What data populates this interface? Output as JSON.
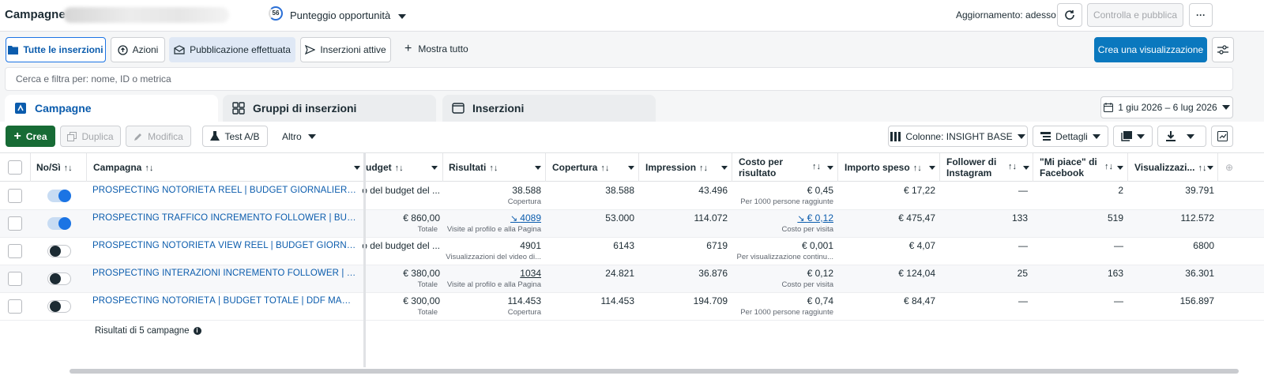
{
  "header": {
    "title": "Campagne",
    "score": "56",
    "opportunity_label": "Punteggio opportunità",
    "update_status": "Aggiornamento: adesso",
    "review_publish": "Controlla e pubblica",
    "more": "···"
  },
  "toolbar": {
    "all_ads": "Tutte le inserzioni",
    "actions": "Azioni",
    "published": "Pubblicazione effettuata",
    "active_ads": "Inserzioni attive",
    "show_all": "Mostra tutto",
    "create_view": "Crea una visualizzazione"
  },
  "search": {
    "placeholder": "Cerca e filtra per: nome, ID o metrica"
  },
  "tabs": [
    "Campagne",
    "Gruppi di inserzioni",
    "Inserzioni"
  ],
  "date_range": "1 giu 2026 – 6 lug 2026",
  "actions_bar": {
    "create": "Crea",
    "duplicate": "Duplica",
    "edit": "Modifica",
    "ab_test": "Test A/B",
    "more": "Altro",
    "columns": "Colonne: INSIGHT BASE",
    "details": "Dettagli"
  },
  "columns": {
    "onoff": "No/Sì",
    "campaign": "Campagna",
    "budget": "udget",
    "results": "Risultati",
    "reach": "Copertura",
    "impressions": "Impression",
    "cpr1": "Costo per",
    "cpr2": "risultato",
    "spent": "Importo speso",
    "ig1": "Follower di",
    "ig2": "Instagram",
    "fb1": "\"Mi piace\" di",
    "fb2": "Facebook",
    "views": "Visualizzazi..."
  },
  "rows": [
    {
      "on": true,
      "name": "PROSPECTING NOTORIETÀ REEL | BUDGET GIORNALIERO | DDF MANAGEMENT",
      "budget": "o del budget del ...",
      "budget_sub": "",
      "results": "38.588",
      "results_sub": "Copertura",
      "results_link": false,
      "reach": "38.588",
      "impressions": "43.496",
      "cpr": "€ 0,45",
      "cpr_sub": "Per 1000 persone raggiunte",
      "cpr_link": false,
      "spent": "€ 17,22",
      "ig": "—",
      "fb": "2",
      "views": "39.791"
    },
    {
      "on": true,
      "name": "PROSPECTING TRAFFICO INCREMENTO FOLLOWER | BUDGET TOTALE",
      "budget": "€ 860,00",
      "budget_sub": "Totale",
      "results": "4089",
      "results_sub": "Visite al profilo e alla Pagina",
      "results_link": true,
      "reach": "53.000",
      "impressions": "114.072",
      "cpr": "€ 0,12",
      "cpr_sub": "Costo per visita",
      "cpr_link": true,
      "spent": "€ 475,47",
      "ig": "133",
      "fb": "519",
      "views": "112.572"
    },
    {
      "on": false,
      "name": "PROSPECTING NOTORIETÀ VIEW REEL | BUDGET GIORNALIERO | DDF",
      "budget": "o del budget del ...",
      "budget_sub": "",
      "results": "4901",
      "results_sub": "Visualizzazioni del video di...",
      "results_link": false,
      "reach": "6143",
      "impressions": "6719",
      "cpr": "€ 0,001",
      "cpr_sub": "Per visualizzazione continu...",
      "cpr_link": false,
      "spent": "€ 4,07",
      "ig": "—",
      "fb": "—",
      "views": "6800"
    },
    {
      "on": false,
      "name": "PROSPECTING INTERAZIONI INCREMENTO FOLLOWER | BUDGET TOTALE",
      "budget": "€ 380,00",
      "budget_sub": "Totale",
      "results": "1034",
      "results_sub": "Visite al profilo e alla Pagina",
      "results_link": false,
      "reach": "24.821",
      "impressions": "36.876",
      "cpr": "€ 0,12",
      "cpr_sub": "Costo per visita",
      "cpr_link": false,
      "spent": "€ 124,04",
      "ig": "25",
      "fb": "163",
      "views": "36.301"
    },
    {
      "on": false,
      "name": "PROSPECTING NOTORIETÀ | BUDGET TOTALE | DDF MANAGEMENT",
      "budget": "€ 300,00",
      "budget_sub": "Totale",
      "results": "114.453",
      "results_sub": "Copertura",
      "results_link": false,
      "reach": "114.453",
      "impressions": "194.709",
      "cpr": "€ 0,74",
      "cpr_sub": "Per 1000 persone raggiunte",
      "cpr_link": false,
      "spent": "€ 84,47",
      "ig": "—",
      "fb": "—",
      "views": "156.897"
    }
  ],
  "footer": {
    "summary": "Risultati di 5 campagne"
  },
  "icons": [
    "refresh-icon",
    "settings-sliders-icon",
    "folder-icon",
    "cursor-icon",
    "envelope-icon",
    "send-icon",
    "plus-icon",
    "calendar-icon",
    "columns-icon",
    "download-icon",
    "chart-icon",
    "info-icon",
    "flask-icon",
    "pencil-icon",
    "copy-icon"
  ],
  "colors": {
    "primary": "#0a78be",
    "link": "#0b5cad",
    "create": "#176b35",
    "toggle_on": "#1b74e4"
  }
}
